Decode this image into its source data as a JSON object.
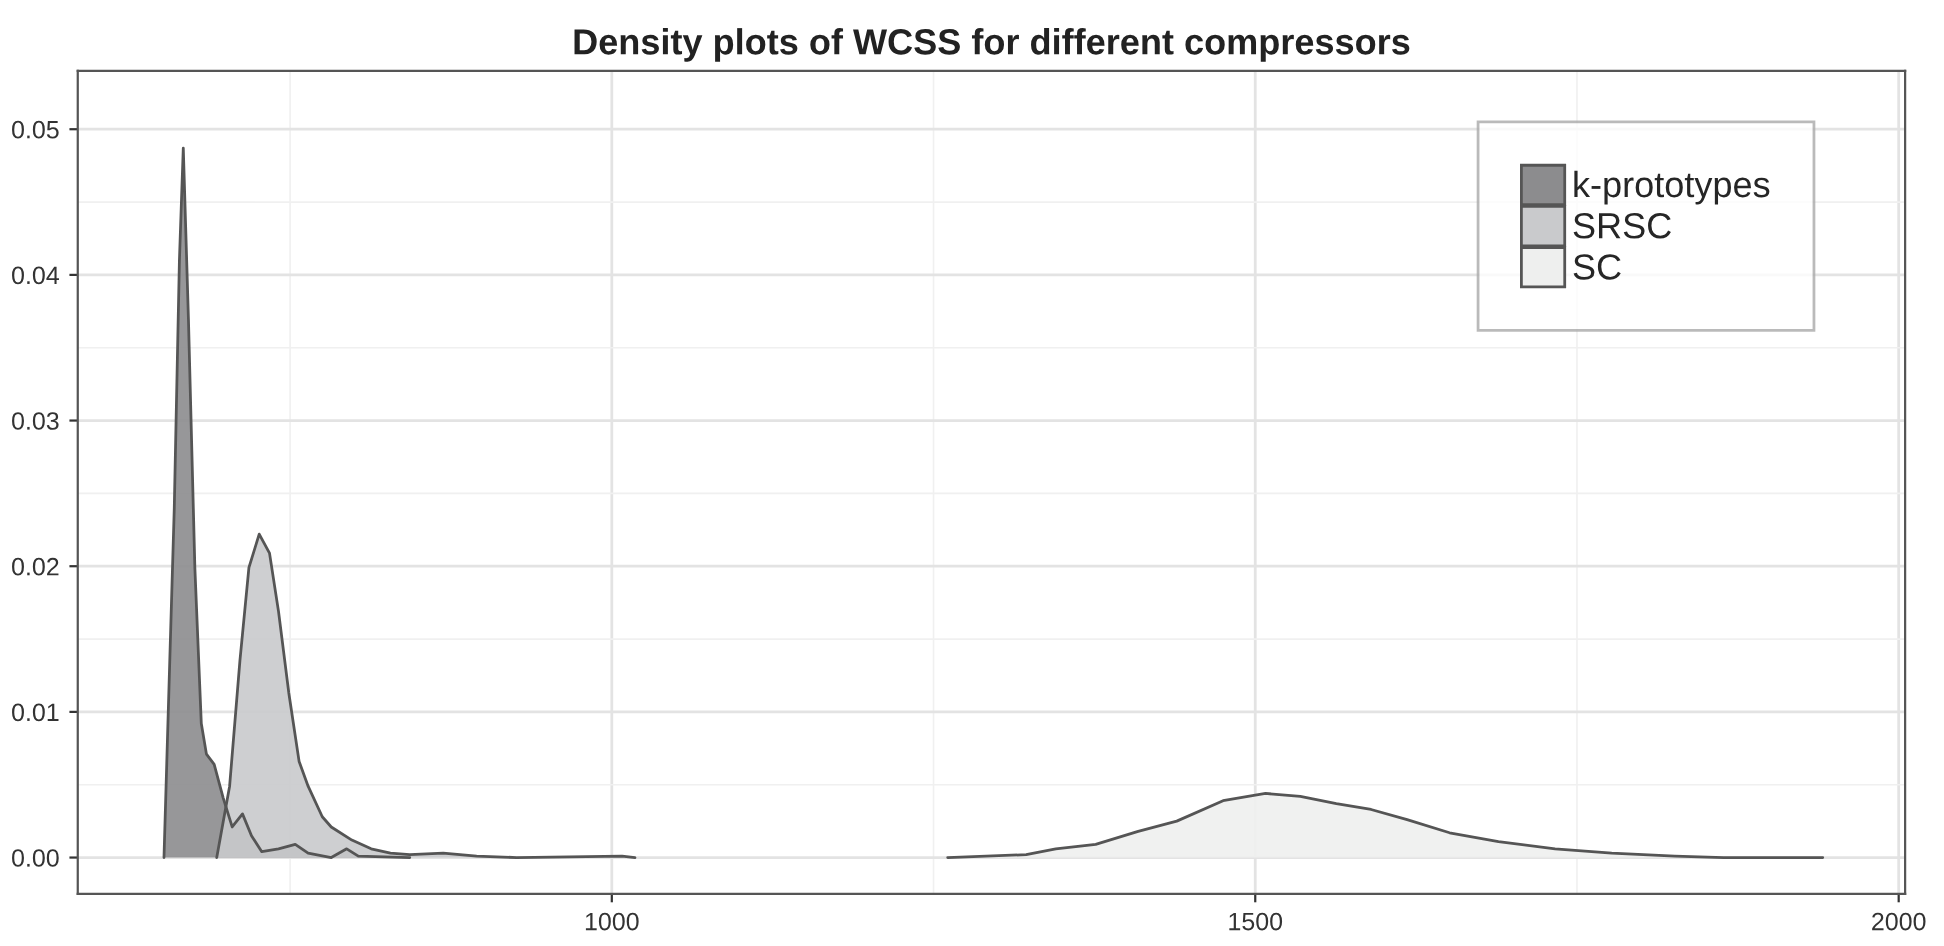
{
  "chart_data": {
    "type": "area",
    "title": "Density plots of WCSS for different compressors",
    "xlim": [
      585,
      2005
    ],
    "xticks": [
      1000,
      1500,
      2000
    ],
    "ylim": [
      -0.0025,
      0.054
    ],
    "yticks": [
      {
        "value": 0,
        "label": "0.00"
      },
      {
        "value": 0.01,
        "label": "0.01"
      },
      {
        "value": 0.02,
        "label": "0.02"
      },
      {
        "value": 0.03,
        "label": "0.03"
      },
      {
        "value": 0.04,
        "label": "0.04"
      },
      {
        "value": 0.05,
        "label": "0.05"
      }
    ],
    "grid": true,
    "legend": "top right",
    "series": [
      {
        "name": "k-prototypes",
        "color": "#8c8c8e",
        "x": [
          652,
          660,
          664,
          667,
          671,
          676,
          681,
          685,
          691,
          698,
          705,
          713,
          720,
          728,
          741,
          754,
          764,
          782,
          794,
          803,
          843
        ],
        "values": [
          0,
          0.024,
          0.041,
          0.0487,
          0.037,
          0.0199,
          0.0092,
          0.0071,
          0.0064,
          0.0041,
          0.0021,
          0.003,
          0.0015,
          0.0004,
          0.0006,
          0.0009,
          0.0003,
          0.0,
          0.0006,
          0.0001,
          0
        ]
      },
      {
        "name": "SRSC",
        "color": "#c9cacc",
        "x": [
          693,
          703,
          711,
          718,
          726,
          734,
          741,
          749,
          757,
          764,
          775,
          782,
          798,
          813,
          828,
          843,
          869,
          895,
          926,
          1008,
          1018
        ],
        "values": [
          0,
          0.0049,
          0.0135,
          0.0199,
          0.0222,
          0.0209,
          0.0169,
          0.0113,
          0.0066,
          0.0049,
          0.0028,
          0.0021,
          0.0012,
          0.0006,
          0.0003,
          0.0002,
          0.0003,
          0.0001,
          0,
          0.0001,
          0
        ]
      },
      {
        "name": "SC",
        "color": "#eeefee",
        "x": [
          1261,
          1322,
          1345,
          1376,
          1409,
          1439,
          1475,
          1508,
          1535,
          1563,
          1590,
          1618,
          1651,
          1689,
          1733,
          1777,
          1826,
          1864,
          1941
        ],
        "values": [
          0,
          0.0002,
          0.0006,
          0.0009,
          0.0018,
          0.0025,
          0.0039,
          0.0044,
          0.0042,
          0.0037,
          0.0033,
          0.0026,
          0.0017,
          0.0011,
          0.0006,
          0.0003,
          0.0001,
          0,
          0
        ]
      }
    ]
  }
}
